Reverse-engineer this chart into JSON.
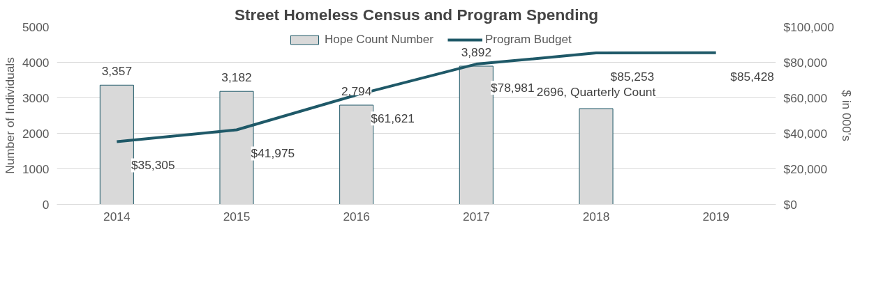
{
  "chart_data": {
    "type": "bar",
    "title": "Street Homeless Census and Program Spending",
    "ylabel": "Number of Individuals",
    "y2label": "$ in 000's",
    "categories": [
      "2014",
      "2015",
      "2016",
      "2017",
      "2018",
      "2019"
    ],
    "series": [
      {
        "name": "Hope Count Number",
        "color": "#d9d9d9",
        "values": [
          3357,
          3182,
          2794,
          3892,
          2696,
          null
        ],
        "value_labels": [
          "3,357",
          "3,182",
          "2,794",
          "3,892",
          "2696, Quarterly Count",
          null
        ]
      },
      {
        "name": "Program Budget",
        "type": "line",
        "axis": "y2",
        "color": "#1f5968",
        "values": [
          35305,
          41975,
          61621,
          78981,
          85253,
          85428
        ],
        "value_labels": [
          "$35,305",
          "$41,975",
          "$61,621",
          "$78,981",
          "$85,253",
          "$85,428"
        ]
      }
    ],
    "ylim": [
      0,
      5000
    ],
    "yticks": [
      0,
      1000,
      2000,
      3000,
      4000,
      5000
    ],
    "y2lim": [
      0,
      100000
    ],
    "y2ticks": [
      {
        "value": 0,
        "label": "$0"
      },
      {
        "value": 20000,
        "label": "$20,000"
      },
      {
        "value": 40000,
        "label": "$40,000"
      },
      {
        "value": 60000,
        "label": "$60,000"
      },
      {
        "value": 80000,
        "label": "$80,000"
      },
      {
        "value": 100000,
        "label": "$100,000"
      }
    ],
    "grid": "y",
    "legend": "top",
    "line_style": "solid"
  }
}
